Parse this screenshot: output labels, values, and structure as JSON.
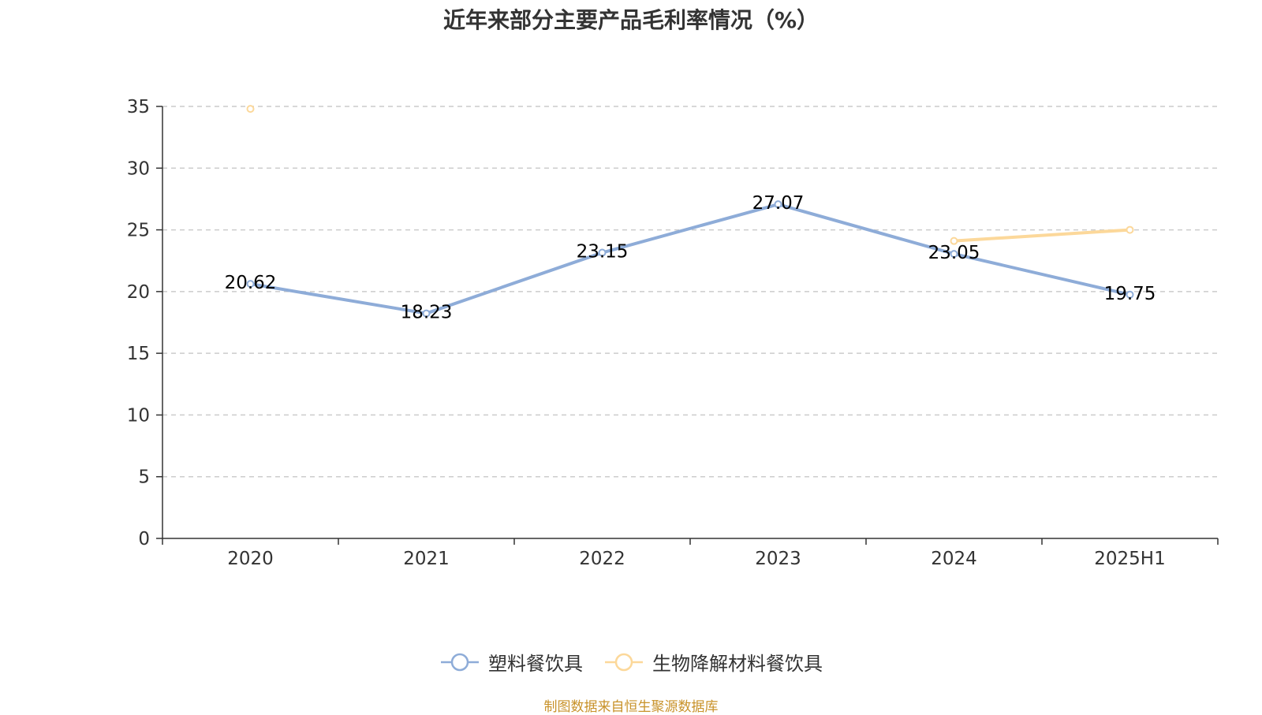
{
  "colors": {
    "axis": "#333333",
    "grid": "#cccccc",
    "label": "#000000",
    "tick_label": "#333333",
    "source": "#c8922a"
  },
  "chart_data": {
    "type": "line",
    "title": "近年来部分主要产品毛利率情况（%）",
    "categories": [
      "2020",
      "2021",
      "2022",
      "2023",
      "2024",
      "2025H1"
    ],
    "ylim": [
      0,
      35
    ],
    "yticks": [
      0,
      5,
      10,
      15,
      20,
      25,
      30,
      35
    ],
    "grid": true,
    "legend_position": "bottom",
    "series": [
      {
        "name": "塑料餐饮具",
        "color": "#8eacd8",
        "values": [
          20.62,
          18.23,
          23.15,
          27.07,
          23.05,
          19.75
        ],
        "labels": [
          "20.62",
          "18.23",
          "23.15",
          "27.07",
          "23.05",
          "19.75"
        ],
        "show_labels": true
      },
      {
        "name": "生物降解材料餐饮具",
        "color": "#fcd89a",
        "values": [
          34.8,
          null,
          null,
          null,
          24.1,
          25.0
        ],
        "labels": [],
        "show_labels": false
      }
    ]
  },
  "source": "制图数据来自恒生聚源数据库"
}
